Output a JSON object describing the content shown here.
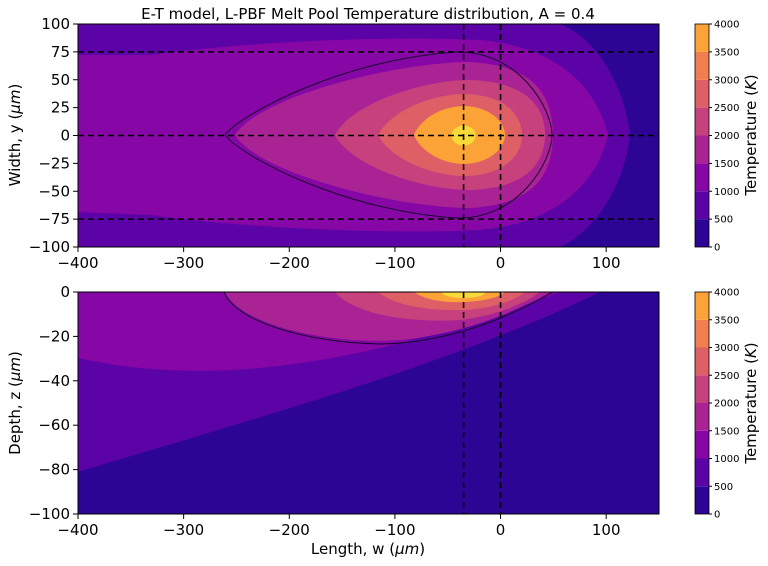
{
  "chart_data": [
    {
      "type": "heatmap",
      "title": "E-T model, L-PBF Melt Pool Temperature distribution, A = 0.4",
      "xlabel": "",
      "ylabel_prefix": "Width, y (",
      "ylabel_unit": "μm",
      "ylabel_suffix": ")",
      "xlim": [
        -400,
        150
      ],
      "ylim": [
        -100,
        100
      ],
      "xticks": [
        -400,
        -300,
        -200,
        -100,
        0,
        100
      ],
      "xtick_labels": [
        "−400",
        "−300",
        "−200",
        "−100",
        "0",
        "100"
      ],
      "yticks": [
        100,
        75,
        50,
        25,
        0,
        -25,
        -50,
        -75,
        -100
      ],
      "ytick_labels": [
        "100",
        "75",
        "50",
        "25",
        "0",
        "−25",
        "−50",
        "−75",
        "−100"
      ],
      "contour_levels_K": [
        0,
        500,
        1000,
        1500,
        2000,
        2500,
        3000,
        3500,
        4000
      ],
      "peak_position": {
        "x": -35,
        "y": 0
      },
      "dashed_lines": {
        "vertical_x": [
          -35,
          0
        ],
        "horizontal_y": [
          75,
          0,
          -75
        ]
      },
      "melt_pool_boundary": {
        "x_min": -265,
        "x_max": 52,
        "half_width": 75
      }
    },
    {
      "type": "heatmap",
      "title": "",
      "xlabel_prefix": "Length, w (",
      "xlabel_unit": "μm",
      "xlabel_suffix": ")",
      "ylabel_prefix": "Depth, z (",
      "ylabel_unit": "μm",
      "ylabel_suffix": ")",
      "xlim": [
        -400,
        150
      ],
      "ylim": [
        -100,
        0
      ],
      "xticks": [
        -400,
        -300,
        -200,
        -100,
        0,
        100
      ],
      "xtick_labels": [
        "−400",
        "−300",
        "−200",
        "−100",
        "0",
        "100"
      ],
      "yticks": [
        0,
        -20,
        -40,
        -60,
        -80,
        -100
      ],
      "ytick_labels": [
        "0",
        "−20",
        "−40",
        "−60",
        "−80",
        "−100"
      ],
      "contour_levels_K": [
        0,
        500,
        1000,
        1500,
        2000,
        2500,
        3000,
        3500,
        4000
      ],
      "peak_position": {
        "x": -35,
        "z": 0
      },
      "dashed_lines": {
        "vertical_x": [
          -35,
          0
        ]
      },
      "melt_pool_boundary": {
        "x_min": -260,
        "x_max": 50,
        "depth": 24
      }
    }
  ],
  "colorbar": {
    "label_prefix": "Temperature  (",
    "label_unit": "K",
    "label_suffix": ")",
    "ticks": [
      0,
      500,
      1000,
      1500,
      2000,
      2500,
      3000,
      3500,
      4000
    ],
    "tick_labels": [
      "0",
      "500",
      "1000",
      "1500",
      "2000",
      "2500",
      "3000",
      "3500",
      "4000"
    ],
    "colors": [
      "#2c0594",
      "#5b03a6",
      "#8606a6",
      "#a92395",
      "#c7427c",
      "#de5f65",
      "#f17e4f",
      "#fca338",
      "#f7d93a"
    ]
  }
}
